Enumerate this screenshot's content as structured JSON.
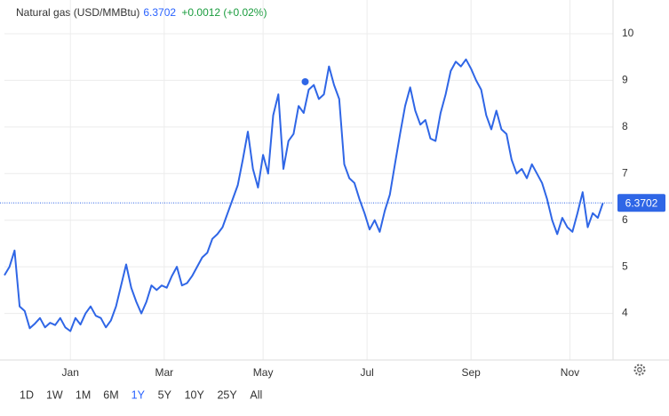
{
  "chart_data": {
    "type": "line",
    "title": "Natural gas (USD/MMBtu)",
    "current_value": 6.3702,
    "change": "+0.0012 (+0.02%)",
    "x": [
      0,
      1,
      2,
      3,
      4,
      5,
      6,
      7,
      8,
      9,
      10,
      11,
      12,
      13,
      14,
      15,
      16,
      17,
      18,
      19,
      20,
      21,
      22,
      23,
      24,
      25,
      26,
      27,
      28,
      29,
      30,
      31,
      32,
      33,
      34,
      35,
      36,
      37,
      38,
      39,
      40,
      41,
      42,
      43,
      44,
      45,
      46,
      47,
      48,
      49,
      50,
      51,
      52,
      53,
      54,
      55,
      56,
      57,
      58,
      59,
      60,
      61,
      62,
      63,
      64,
      65,
      66,
      67,
      68,
      69,
      70,
      71,
      72,
      73,
      74,
      75,
      76,
      77,
      78,
      79,
      80,
      81,
      82,
      83,
      84,
      85,
      86,
      87,
      88,
      89,
      90,
      91,
      92,
      93,
      94,
      95,
      96,
      97,
      98,
      99,
      100,
      101,
      102,
      103,
      104,
      105,
      106,
      107,
      108,
      109,
      110,
      111,
      112,
      113,
      114,
      115,
      116,
      117,
      118
    ],
    "series": [
      {
        "name": "Natural gas",
        "color": "#2f66e6",
        "values": [
          4.82,
          5.0,
          5.35,
          4.15,
          4.05,
          3.68,
          3.78,
          3.9,
          3.7,
          3.8,
          3.75,
          3.9,
          3.7,
          3.62,
          3.9,
          3.76,
          4.0,
          4.15,
          3.95,
          3.9,
          3.7,
          3.85,
          4.15,
          4.6,
          5.05,
          4.55,
          4.25,
          4.0,
          4.25,
          4.6,
          4.5,
          4.6,
          4.55,
          4.8,
          5.0,
          4.6,
          4.65,
          4.8,
          5.0,
          5.2,
          5.3,
          5.6,
          5.7,
          5.85,
          6.15,
          6.45,
          6.75,
          7.3,
          7.9,
          7.1,
          6.7,
          7.4,
          7.0,
          8.25,
          8.7,
          7.1,
          7.7,
          7.85,
          8.45,
          8.3,
          8.8,
          8.9,
          8.6,
          8.7,
          9.3,
          8.9,
          8.6,
          7.2,
          6.9,
          6.8,
          6.45,
          6.15,
          5.8,
          6.0,
          5.75,
          6.2,
          6.55,
          7.2,
          7.85,
          8.45,
          8.85,
          8.35,
          8.05,
          8.15,
          7.75,
          7.7,
          8.3,
          8.7,
          9.2,
          9.4,
          9.3,
          9.45,
          9.25,
          9.0,
          8.8,
          8.25,
          7.95,
          8.35,
          7.95,
          7.85,
          7.3,
          7.0,
          7.1,
          6.9,
          7.2,
          7.0,
          6.8,
          6.45,
          6.0,
          5.7,
          6.05,
          5.85,
          5.75,
          6.15,
          6.6,
          5.85,
          6.15,
          6.05,
          6.3702
        ]
      }
    ],
    "marker": {
      "x": 59.3,
      "y": 8.97
    },
    "xlim": [
      0,
      120
    ],
    "xticks": [
      {
        "value": 13,
        "label": "Jan"
      },
      {
        "value": 31.5,
        "label": "Mar"
      },
      {
        "value": 51,
        "label": "May"
      },
      {
        "value": 71.5,
        "label": "Jul"
      },
      {
        "value": 92,
        "label": "Sep"
      },
      {
        "value": 111.5,
        "label": "Nov"
      }
    ],
    "ylim": [
      3.0,
      10.6
    ],
    "yticks": [
      4,
      5,
      6,
      7,
      8,
      9,
      10
    ],
    "grid": true,
    "ranges": [
      "1D",
      "1W",
      "1M",
      "6M",
      "1Y",
      "5Y",
      "10Y",
      "25Y",
      "All"
    ],
    "selected_range": 4
  }
}
